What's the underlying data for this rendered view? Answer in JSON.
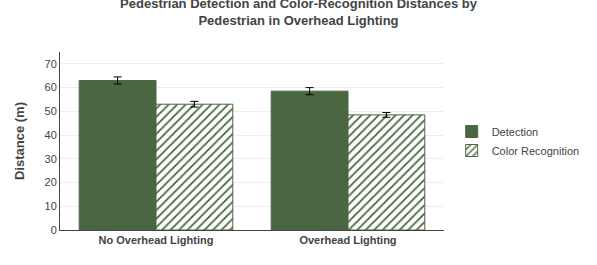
{
  "chart_data": {
    "type": "bar",
    "title": "Pedestrian Detection and Color-Recognition Distances by\nPedestrian in Overhead Lighting",
    "ylabel": "Distance (m)",
    "categories": [
      "No Overhead Lighting",
      "Overhead Lighting"
    ],
    "series": [
      {
        "name": "Detection",
        "color": "#4a6741",
        "marker": "solid",
        "values": [
          63.0,
          58.5
        ],
        "errors": [
          1.5,
          1.5
        ]
      },
      {
        "name": "Color Recognition",
        "color": "#4a6741",
        "marker": "hatch",
        "values": [
          53.0,
          48.5
        ],
        "errors": [
          1.2,
          1.0
        ]
      }
    ],
    "ylim": [
      0,
      75
    ],
    "yticks": [
      0,
      10,
      20,
      30,
      40,
      50,
      60,
      70
    ],
    "grid": true,
    "legend": "right"
  }
}
